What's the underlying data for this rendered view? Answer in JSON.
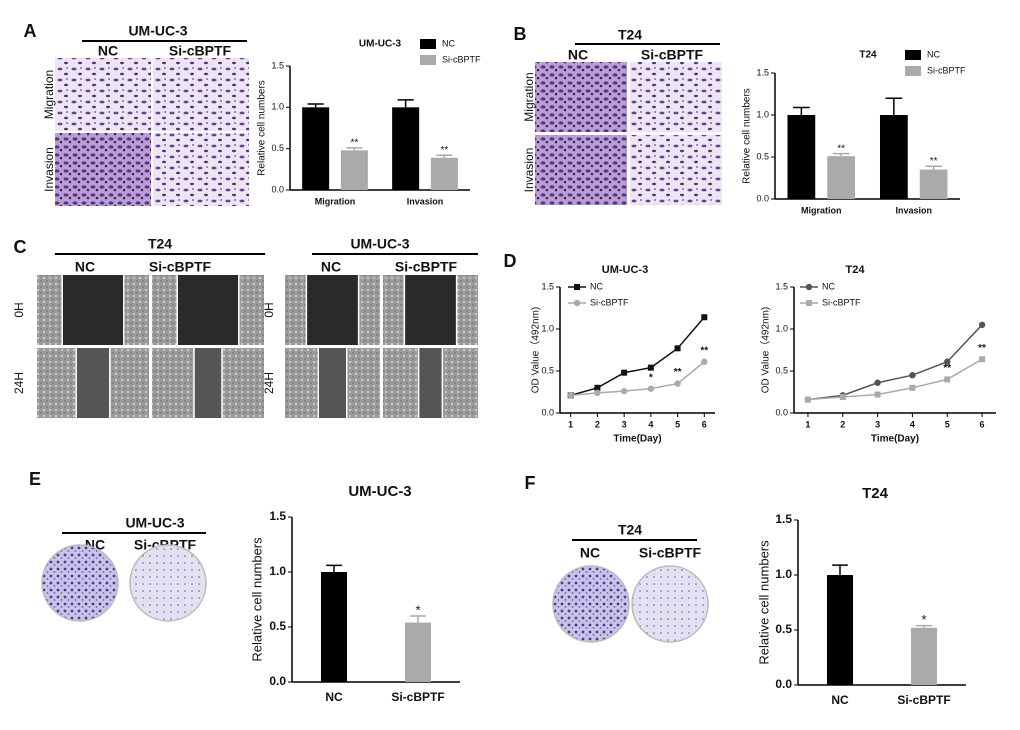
{
  "images": [
    {
      "letter": "A",
      "title": "UM-UC-3",
      "columns": [
        "NC",
        "Si-cBPTF"
      ],
      "rows": [
        "Migration",
        "Invasion"
      ]
    },
    {
      "letter": "B",
      "title": "T24",
      "columns": [
        "NC",
        "Si-cBPTF"
      ],
      "rows": [
        "Migration",
        "Invasion"
      ]
    },
    {
      "letter": "C",
      "title": "T24",
      "columns": [
        "NC",
        "Si-cBPTF"
      ],
      "rows": [
        "0H",
        "24H"
      ]
    },
    {
      "title": "UM-UC-3",
      "columns": [
        "NC",
        "Si-cBPTF"
      ],
      "rows": [
        "0H",
        "24H"
      ]
    },
    {
      "letter": "E",
      "title": "UM-UC-3",
      "columns": [
        "NC",
        "Si-cBPTF"
      ]
    },
    {
      "letter": "F",
      "title": "T24",
      "columns": [
        "NC",
        "Si-cBPTF"
      ]
    }
  ],
  "chart_data": [
    {
      "type": "bar",
      "title": "UM-UC-3",
      "y_label": "Relative cell numbers",
      "categories": [
        "Migration",
        "Invasion"
      ],
      "series": [
        {
          "name": "NC",
          "color": "#000000",
          "values": [
            1.0,
            1.0
          ],
          "errors": [
            0.04,
            0.09
          ]
        },
        {
          "name": "Si-cBPTF",
          "color": "#aaaaaa",
          "values": [
            0.48,
            0.39
          ],
          "errors": [
            0.03,
            0.03
          ],
          "significance": [
            "**",
            "**"
          ]
        }
      ],
      "ylim": [
        0,
        1.5
      ],
      "yticks": [
        {
          "value": 0,
          "label": "0.0"
        },
        0.5,
        {
          "value": 1,
          "label": "1.0"
        },
        1.5
      ],
      "legend": "top-right"
    },
    {
      "type": "bar",
      "title": "T24",
      "y_label": "Relative cell numbers",
      "categories": [
        "Migration",
        "Invasion"
      ],
      "series": [
        {
          "name": "NC",
          "color": "#000000",
          "values": [
            1.0,
            1.0
          ],
          "errors": [
            0.09,
            0.2
          ]
        },
        {
          "name": "Si-cBPTF",
          "color": "#aaaaaa",
          "values": [
            0.51,
            0.35
          ],
          "errors": [
            0.03,
            0.04
          ],
          "significance": [
            "**",
            "**"
          ]
        }
      ],
      "ylim": [
        0,
        1.5
      ],
      "yticks": [
        {
          "value": 0,
          "label": "0.0"
        },
        0.5,
        {
          "value": 1,
          "label": "1.0"
        },
        1.5
      ],
      "legend": "top-right"
    },
    {
      "type": "line",
      "panel": "D",
      "title": "UM-UC-3",
      "x_label": "Time(Day)",
      "y_label": "OD Value（492nm)",
      "x": [
        1,
        2,
        3,
        4,
        5,
        6
      ],
      "series": [
        {
          "name": "NC",
          "color": "#111111",
          "marker": "square",
          "values": [
            0.21,
            0.3,
            0.48,
            0.54,
            0.77,
            1.14
          ]
        },
        {
          "name": "Si-cBPTF",
          "color": "#aaaaaa",
          "marker": "circle",
          "values": [
            0.21,
            0.24,
            0.26,
            0.29,
            0.35,
            0.61
          ],
          "significance": [
            null,
            null,
            null,
            "*",
            "**",
            "**"
          ]
        }
      ],
      "xlim": [
        0.6,
        6.4
      ],
      "xticks": [
        1,
        2,
        3,
        4,
        5,
        6
      ],
      "ylim": [
        0,
        1.5
      ],
      "yticks": [
        {
          "value": 0,
          "label": "0.0"
        },
        0.5,
        {
          "value": 1,
          "label": "1.0"
        },
        1.5
      ],
      "legend": "top-left"
    },
    {
      "type": "line",
      "title": "T24",
      "x_label": "Time(Day)",
      "y_label": "OD Value（492nm)",
      "x": [
        1,
        2,
        3,
        4,
        5,
        6
      ],
      "series": [
        {
          "name": "NC",
          "color": "#555555",
          "marker": "circle",
          "values": [
            0.16,
            0.21,
            0.36,
            0.45,
            0.61,
            1.05
          ]
        },
        {
          "name": "Si-cBPTF",
          "color": "#aaaaaa",
          "marker": "square",
          "values": [
            0.16,
            0.19,
            0.22,
            0.3,
            0.4,
            0.64
          ],
          "significance": [
            null,
            null,
            null,
            null,
            "**",
            "**"
          ]
        }
      ],
      "xlim": [
        0.6,
        6.4
      ],
      "xticks": [
        1,
        2,
        3,
        4,
        5,
        6
      ],
      "ylim": [
        0,
        1.5
      ],
      "yticks": [
        {
          "value": 0,
          "label": "0.0"
        },
        0.5,
        {
          "value": 1,
          "label": "1.0"
        },
        1.5
      ],
      "legend": "top-left"
    },
    {
      "type": "bar",
      "title": "UM-UC-3",
      "y_label": "Relative cell numbers",
      "categories": [
        "NC",
        "Si-cBPTF"
      ],
      "values": [
        1.0,
        0.54
      ],
      "errors": [
        0.06,
        0.06
      ],
      "colors": [
        "#000000",
        "#aaaaaa"
      ],
      "significance": [
        null,
        "*"
      ],
      "ylim": [
        0,
        1.5
      ],
      "yticks": [
        {
          "value": 0,
          "label": "0.0"
        },
        0.5,
        {
          "value": 1,
          "label": "1.0"
        },
        1.5
      ]
    },
    {
      "type": "bar",
      "title": "T24",
      "y_label": "Relative cell numbers",
      "categories": [
        "NC",
        "Si-cBPTF"
      ],
      "values": [
        1.0,
        0.52
      ],
      "errors": [
        0.09,
        0.02
      ],
      "colors": [
        "#000000",
        "#aaaaaa"
      ],
      "significance": [
        null,
        "*"
      ],
      "ylim": [
        0,
        1.5
      ],
      "yticks": [
        {
          "value": 0,
          "label": "0.0"
        },
        0.5,
        {
          "value": 1,
          "label": "1.0"
        },
        1.5
      ]
    }
  ]
}
